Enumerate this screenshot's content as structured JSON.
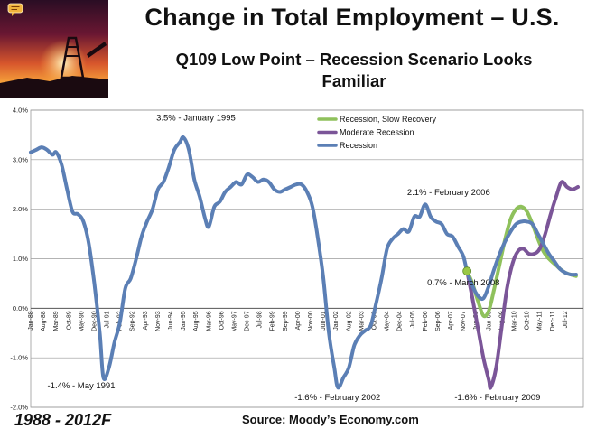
{
  "title": "Change in Total Employment – U.S.",
  "subtitle_line1": "Q109 Low Point – Recession Scenario Looks",
  "subtitle_line2": "Familiar",
  "period_label": "1988 - 2012F",
  "source": "Source: Moody’s Economy.com",
  "colors": {
    "recession": "#5b7fb5",
    "moderate": "#7b5598",
    "slow": "#8fc15c",
    "marker": "#9ac846"
  },
  "icons": [
    "chat-bubble-icon"
  ],
  "chart_data": {
    "type": "line",
    "ylim": [
      -2.0,
      4.0
    ],
    "yticks": [
      -2.0,
      -1.0,
      0.0,
      1.0,
      2.0,
      3.0,
      4.0
    ],
    "ytick_labels": [
      "-2.0%",
      "-1.0%",
      "0.0%",
      "1.0%",
      "2.0%",
      "3.0%",
      "4.0%"
    ],
    "xlim": [
      "1988-01",
      "2013-05"
    ],
    "x_tick_labels": [
      "Jan-88",
      "Aug-88",
      "Mar-89",
      "Oct-89",
      "May-90",
      "Dec-90",
      "Jul-91",
      "Feb-92",
      "Sep-92",
      "Apr-93",
      "Nov-93",
      "Jun-94",
      "Jan-95",
      "Aug-95",
      "Mar-96",
      "Oct-96",
      "May-97",
      "Dec-97",
      "Jul-98",
      "Feb-99",
      "Sep-99",
      "Apr-00",
      "Nov-00",
      "Jun-01",
      "Jan-02",
      "Aug-02",
      "Mar-03",
      "Oct-03",
      "May-04",
      "Dec-04",
      "Jul-05",
      "Feb-06",
      "Sep-06",
      "Apr-07",
      "Nov-07",
      "Jun-08",
      "Jan-09",
      "Aug-09",
      "Mar-10",
      "Oct-10",
      "May-11",
      "Dec-11",
      "Jul-12"
    ],
    "grid": true,
    "legend_position": "top-center",
    "series": [
      {
        "name": "Recession, Slow Recovery",
        "color": "#8fc15c",
        "points": [
          [
            "2008-01",
            0.75
          ],
          [
            "2008-04",
            0.5
          ],
          [
            "2008-07",
            0.15
          ],
          [
            "2008-10",
            -0.15
          ],
          [
            "2009-01",
            -0.05
          ],
          [
            "2009-04",
            0.4
          ],
          [
            "2009-07",
            0.9
          ],
          [
            "2009-10",
            1.4
          ],
          [
            "2010-01",
            1.8
          ],
          [
            "2010-04",
            2.0
          ],
          [
            "2010-07",
            2.05
          ],
          [
            "2010-10",
            1.95
          ],
          [
            "2011-01",
            1.7
          ],
          [
            "2011-04",
            1.4
          ],
          [
            "2011-07",
            1.15
          ],
          [
            "2011-10",
            1.0
          ],
          [
            "2012-01",
            0.9
          ],
          [
            "2012-04",
            0.8
          ],
          [
            "2012-07",
            0.72
          ],
          [
            "2012-10",
            0.68
          ],
          [
            "2013-01",
            0.65
          ]
        ]
      },
      {
        "name": "Moderate Recession",
        "color": "#7b5598",
        "points": [
          [
            "2008-01",
            0.75
          ],
          [
            "2008-04",
            0.2
          ],
          [
            "2008-07",
            -0.4
          ],
          [
            "2008-10",
            -1.0
          ],
          [
            "2009-01",
            -1.45
          ],
          [
            "2009-02",
            -1.6
          ],
          [
            "2009-05",
            -1.2
          ],
          [
            "2009-08",
            -0.4
          ],
          [
            "2009-11",
            0.4
          ],
          [
            "2010-02",
            0.9
          ],
          [
            "2010-05",
            1.15
          ],
          [
            "2010-08",
            1.2
          ],
          [
            "2010-11",
            1.1
          ],
          [
            "2011-02",
            1.1
          ],
          [
            "2011-05",
            1.2
          ],
          [
            "2011-08",
            1.5
          ],
          [
            "2011-11",
            1.9
          ],
          [
            "2012-02",
            2.25
          ],
          [
            "2012-05",
            2.55
          ],
          [
            "2012-08",
            2.45
          ],
          [
            "2012-11",
            2.4
          ],
          [
            "2013-02",
            2.45
          ]
        ]
      },
      {
        "name": "Recession",
        "color": "#5b7fb5",
        "points": [
          [
            "1988-01",
            3.15
          ],
          [
            "1988-04",
            3.2
          ],
          [
            "1988-07",
            3.25
          ],
          [
            "1988-10",
            3.2
          ],
          [
            "1989-01",
            3.1
          ],
          [
            "1989-03",
            3.15
          ],
          [
            "1989-06",
            2.9
          ],
          [
            "1989-09",
            2.4
          ],
          [
            "1989-12",
            1.95
          ],
          [
            "1990-03",
            1.9
          ],
          [
            "1990-06",
            1.75
          ],
          [
            "1990-09",
            1.3
          ],
          [
            "1990-12",
            0.5
          ],
          [
            "1991-03",
            -0.5
          ],
          [
            "1991-05",
            -1.4
          ],
          [
            "1991-08",
            -1.2
          ],
          [
            "1991-11",
            -0.7
          ],
          [
            "1992-02",
            -0.3
          ],
          [
            "1992-05",
            0.4
          ],
          [
            "1992-08",
            0.6
          ],
          [
            "1992-11",
            1.0
          ],
          [
            "1993-02",
            1.45
          ],
          [
            "1993-05",
            1.75
          ],
          [
            "1993-08",
            2.0
          ],
          [
            "1993-11",
            2.4
          ],
          [
            "1994-02",
            2.55
          ],
          [
            "1994-05",
            2.85
          ],
          [
            "1994-08",
            3.2
          ],
          [
            "1994-11",
            3.35
          ],
          [
            "1995-01",
            3.45
          ],
          [
            "1995-04",
            3.2
          ],
          [
            "1995-07",
            2.6
          ],
          [
            "1995-10",
            2.25
          ],
          [
            "1996-01",
            1.8
          ],
          [
            "1996-03",
            1.65
          ],
          [
            "1996-06",
            2.05
          ],
          [
            "1996-09",
            2.15
          ],
          [
            "1996-12",
            2.35
          ],
          [
            "1997-03",
            2.45
          ],
          [
            "1997-06",
            2.55
          ],
          [
            "1997-09",
            2.5
          ],
          [
            "1997-12",
            2.7
          ],
          [
            "1998-03",
            2.65
          ],
          [
            "1998-06",
            2.55
          ],
          [
            "1998-09",
            2.6
          ],
          [
            "1998-12",
            2.55
          ],
          [
            "1999-03",
            2.4
          ],
          [
            "1999-06",
            2.35
          ],
          [
            "1999-09",
            2.4
          ],
          [
            "1999-12",
            2.45
          ],
          [
            "2000-03",
            2.5
          ],
          [
            "2000-06",
            2.5
          ],
          [
            "2000-09",
            2.35
          ],
          [
            "2000-12",
            2.05
          ],
          [
            "2001-03",
            1.4
          ],
          [
            "2001-06",
            0.6
          ],
          [
            "2001-09",
            -0.5
          ],
          [
            "2001-12",
            -1.2
          ],
          [
            "2002-02",
            -1.6
          ],
          [
            "2002-05",
            -1.4
          ],
          [
            "2002-08",
            -1.2
          ],
          [
            "2002-11",
            -0.75
          ],
          [
            "2003-02",
            -0.55
          ],
          [
            "2003-05",
            -0.45
          ],
          [
            "2003-08",
            -0.35
          ],
          [
            "2003-11",
            0.1
          ],
          [
            "2004-02",
            0.6
          ],
          [
            "2004-05",
            1.2
          ],
          [
            "2004-08",
            1.4
          ],
          [
            "2004-11",
            1.5
          ],
          [
            "2005-02",
            1.6
          ],
          [
            "2005-05",
            1.55
          ],
          [
            "2005-08",
            1.85
          ],
          [
            "2005-11",
            1.85
          ],
          [
            "2006-02",
            2.1
          ],
          [
            "2006-05",
            1.85
          ],
          [
            "2006-08",
            1.75
          ],
          [
            "2006-11",
            1.7
          ],
          [
            "2007-02",
            1.5
          ],
          [
            "2007-05",
            1.45
          ],
          [
            "2007-08",
            1.25
          ],
          [
            "2007-11",
            1.05
          ],
          [
            "2008-01",
            0.75
          ],
          [
            "2008-04",
            0.45
          ],
          [
            "2008-07",
            0.25
          ],
          [
            "2008-10",
            0.2
          ],
          [
            "2009-01",
            0.45
          ],
          [
            "2009-04",
            0.8
          ],
          [
            "2009-07",
            1.1
          ],
          [
            "2009-10",
            1.35
          ],
          [
            "2010-01",
            1.55
          ],
          [
            "2010-04",
            1.7
          ],
          [
            "2010-07",
            1.75
          ],
          [
            "2010-10",
            1.75
          ],
          [
            "2011-01",
            1.7
          ],
          [
            "2011-04",
            1.5
          ],
          [
            "2011-07",
            1.3
          ],
          [
            "2011-10",
            1.1
          ],
          [
            "2012-01",
            0.95
          ],
          [
            "2012-04",
            0.8
          ],
          [
            "2012-07",
            0.72
          ],
          [
            "2012-10",
            0.68
          ],
          [
            "2013-01",
            0.68
          ]
        ]
      }
    ],
    "annotations": [
      {
        "text": "3.5% - January 1995",
        "x": "1995-01",
        "y": 3.5
      },
      {
        "text": "-1.4% - May 1991",
        "x": "1991-05",
        "y": -1.4
      },
      {
        "text": "2.1% - February 2006",
        "x": "2006-02",
        "y": 2.1
      },
      {
        "text": "0.7% - March 2008",
        "x": "2008-03",
        "y": 0.7
      },
      {
        "text": "-1.6% - February 2002",
        "x": "2002-02",
        "y": -1.6
      },
      {
        "text": "-1.6% - February 2009",
        "x": "2009-02",
        "y": -1.6
      }
    ],
    "marker_point": {
      "x": "2008-01",
      "y": 0.75
    }
  }
}
